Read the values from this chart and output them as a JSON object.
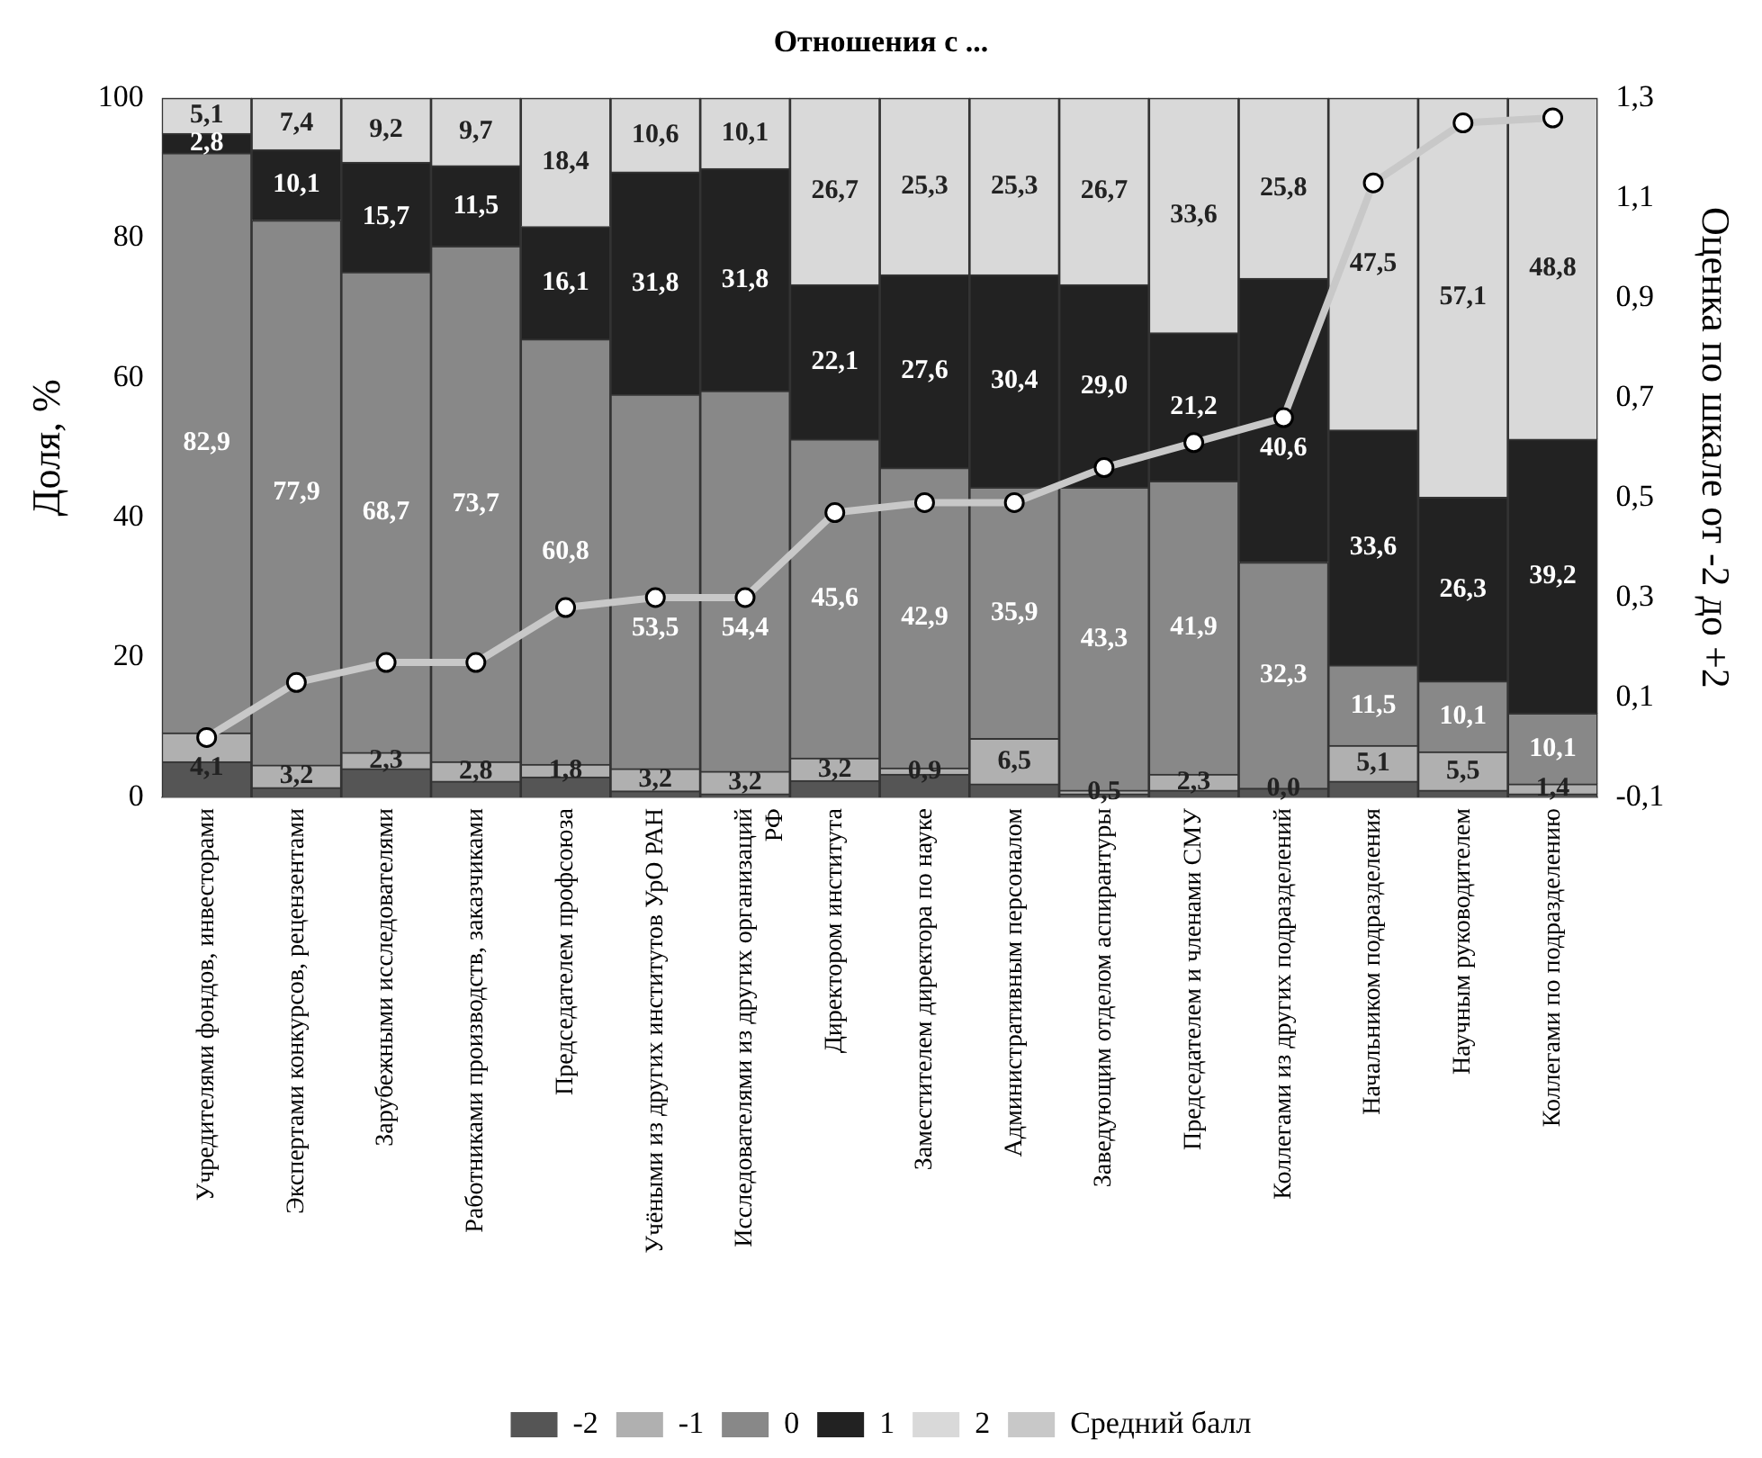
{
  "chart_data": {
    "type": "bar",
    "stacked": true,
    "title": "Отношения с ...",
    "ylabel": "Доля, %",
    "y2label": "Оценка по шкале от -2 до +2",
    "categories": [
      "Учредителями фондов, инвесторами",
      "Экспертами конкурсов, рецензентами",
      "Зарубежными исследователями",
      "Работниками производств, заказчиками",
      "Председателем профсоюза",
      "Учёными из других институтов УрО РАН",
      "Исследователями из других организаций РФ",
      "Директором института",
      "Заместителем директора по науке",
      "Административным персоналом",
      "Заведующим отделом аспирантуры",
      "Председателем и членами СМУ",
      "Коллегами из других подразделений",
      "Начальником подразделения",
      "Научным руководителем",
      "Коллегами по подразделению"
    ],
    "ylim": [
      0,
      100
    ],
    "yticks": [
      0,
      20,
      40,
      60,
      80,
      100
    ],
    "y2lim": [
      -0.1,
      1.3
    ],
    "y2ticks": [
      {
        "value": -0.1,
        "label": "-0,1"
      },
      {
        "value": 0.1,
        "label": "0,1"
      },
      {
        "value": 0.3,
        "label": "0,3"
      },
      {
        "value": 0.5,
        "label": "0,5"
      },
      {
        "value": 0.7,
        "label": "0,7"
      },
      {
        "value": 0.9,
        "label": "0,9"
      },
      {
        "value": 1.1,
        "label": "1,1"
      },
      {
        "value": 1.3,
        "label": "1,3"
      }
    ],
    "grid": false,
    "legend": "bottom",
    "series": [
      {
        "name": "-2",
        "color": "#555555",
        "values": [
          5.1,
          1.4,
          4.1,
          2.3,
          2.9,
          0.9,
          0.5,
          2.4,
          3.3,
          1.9,
          0.5,
          1.0,
          1.3,
          2.3,
          1.0,
          0.5
        ]
      },
      {
        "name": "-1",
        "color": "#b0b0b0",
        "values": [
          4.1,
          3.2,
          2.3,
          2.8,
          1.8,
          3.2,
          3.2,
          3.2,
          0.9,
          6.5,
          0.5,
          2.3,
          0.0,
          5.1,
          5.5,
          1.4
        ],
        "value_labels": [
          "4,1",
          "3,2",
          "2,3",
          "2,8",
          "1,8",
          "3,2",
          "3,2",
          "3,2",
          "0,9",
          "6,5",
          "0,5",
          "2,3",
          "0,0",
          "5,1",
          "5,5",
          "1,4"
        ]
      },
      {
        "name": "0",
        "color": "#888888",
        "values": [
          82.9,
          77.9,
          68.7,
          73.7,
          60.8,
          53.5,
          54.4,
          45.6,
          42.9,
          35.9,
          43.3,
          41.9,
          32.3,
          11.5,
          10.1,
          10.1
        ],
        "value_labels": [
          "82,9",
          "77,9",
          "68,7",
          "73,7",
          "60,8",
          "53,5",
          "54,4",
          "45,6",
          "42,9",
          "35,9",
          "43,3",
          "41,9",
          "32,3",
          "11,5",
          "10,1",
          "10,1"
        ]
      },
      {
        "name": "1",
        "color": "#222222",
        "values": [
          2.8,
          10.1,
          15.7,
          11.5,
          16.1,
          31.8,
          31.8,
          22.1,
          27.6,
          30.4,
          29.0,
          21.2,
          40.6,
          33.6,
          26.3,
          39.2
        ],
        "value_labels": [
          "2,8",
          "10,1",
          "15,7",
          "11,5",
          "16,1",
          "31,8",
          "31,8",
          "22,1",
          "27,6",
          "30,4",
          "29,0",
          "21,2",
          "40,6",
          "33,6",
          "26,3",
          "39,2"
        ]
      },
      {
        "name": "2",
        "color": "#d9d9d9",
        "values": [
          5.1,
          7.4,
          9.2,
          9.7,
          18.4,
          10.6,
          10.1,
          26.7,
          25.3,
          25.3,
          26.7,
          33.6,
          25.8,
          47.5,
          57.1,
          48.8
        ],
        "value_labels": [
          "5,1",
          "7,4",
          "9,2",
          "9,7",
          "18,4",
          "10,6",
          "10,1",
          "26,7",
          "25,3",
          "25,3",
          "26,7",
          "33,6",
          "25,8",
          "47,5",
          "57,1",
          "48,8"
        ]
      },
      {
        "name": "Средний балл",
        "type": "line",
        "axis": "y2",
        "color": "#c8c8c8",
        "marker": "circle",
        "line_style": "solid",
        "values": [
          0.02,
          0.13,
          0.17,
          0.17,
          0.28,
          0.3,
          0.3,
          0.47,
          0.49,
          0.49,
          0.56,
          0.61,
          0.66,
          1.13,
          1.25,
          1.26
        ]
      }
    ]
  }
}
